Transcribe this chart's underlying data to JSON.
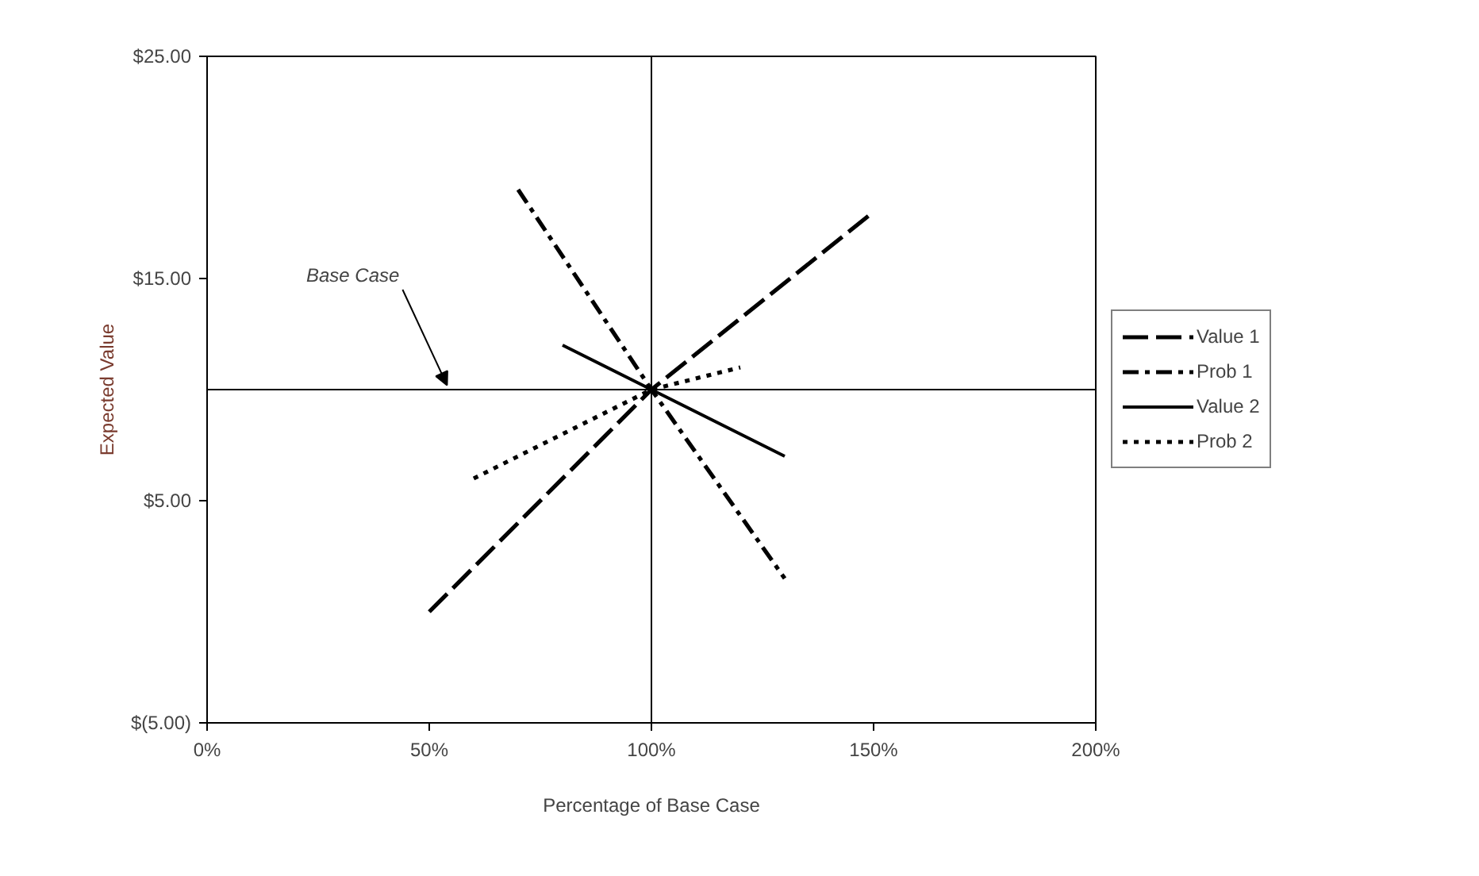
{
  "chart_data": {
    "type": "line",
    "xlabel": "Percentage of Base Case",
    "ylabel": "Expected Value",
    "xlim": [
      0,
      200
    ],
    "xticks": [
      {
        "value": 0,
        "label": "0%"
      },
      {
        "value": 50,
        "label": "50%"
      },
      {
        "value": 100,
        "label": "100%"
      },
      {
        "value": 150,
        "label": "150%"
      },
      {
        "value": 200,
        "label": "200%"
      }
    ],
    "ylim": [
      -5,
      25
    ],
    "yticks": [
      {
        "value": -5,
        "label": "$(5.00)"
      },
      {
        "value": 5,
        "label": "$5.00"
      },
      {
        "value": 15,
        "label": "$15.00"
      },
      {
        "value": 25,
        "label": "$25.00"
      }
    ],
    "grid": false,
    "legend": "right",
    "marker": "none",
    "series": [
      {
        "name": "Value 1",
        "color": "#000000",
        "line_style": "dashed",
        "x": [
          50,
          100,
          150
        ],
        "values": [
          0,
          10,
          18
        ]
      },
      {
        "name": "Prob 1",
        "color": "#000000",
        "line_style": "dashdot",
        "x": [
          70,
          100,
          130
        ],
        "values": [
          19,
          10,
          1.5
        ]
      },
      {
        "name": "Value 2",
        "color": "#000000",
        "line_style": "solid",
        "x": [
          80,
          100,
          130
        ],
        "values": [
          12,
          10,
          7
        ]
      },
      {
        "name": "Prob 2",
        "color": "#000000",
        "line_style": "dotted",
        "x": [
          60,
          100,
          120
        ],
        "values": [
          6,
          10,
          11
        ]
      }
    ],
    "ref_lines": [
      {
        "axis": "x",
        "value": 100,
        "color": "#000000"
      },
      {
        "axis": "y",
        "value": 10,
        "color": "#000000"
      }
    ],
    "annotations": [
      {
        "text": "Base Case",
        "x": 54,
        "y": 10
      }
    ]
  }
}
